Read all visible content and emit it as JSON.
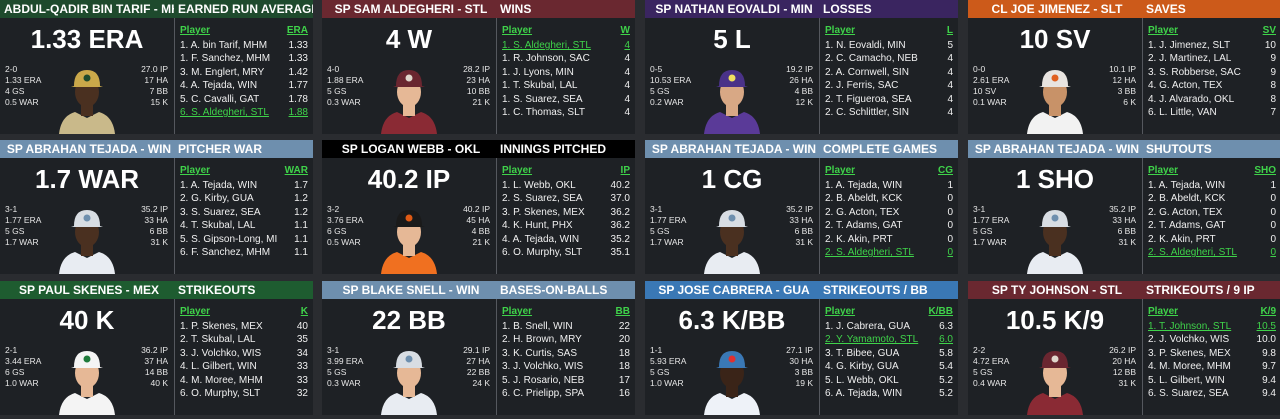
{
  "colors": {
    "highlight": "#3fd34a",
    "mhm": "#1e4a2d",
    "stl": "#6a2830",
    "min": "#3a2560",
    "slt": "#cc5a1a",
    "win": "#6e8fae",
    "okl": "#000000",
    "mex": "#1e5c30",
    "gua": "#3a78b5"
  },
  "cards": [
    {
      "theme": "mhm",
      "player_header": "ABDUL-QADIR BIN TARIF - MHM",
      "category": "EARNED RUN AVERAGE",
      "big_stat": "1.33 ERA",
      "stats_left": [
        "2-0",
        "1.33 ERA",
        "4 GS",
        "0.5 WAR"
      ],
      "stats_right": [
        "27.0 IP",
        "17 HA",
        "7 BB",
        "15 K"
      ],
      "col_player": "Player",
      "col_stat": "ERA",
      "photo_icon": "player-photo-icon",
      "rows": [
        {
          "name": "1. A. bin Tarif, MHM",
          "value": "1.33",
          "hl": false
        },
        {
          "name": "1. F. Sanchez, MHM",
          "value": "1.33",
          "hl": false
        },
        {
          "name": "3. M. Englert, MRY",
          "value": "1.42",
          "hl": false
        },
        {
          "name": "4. A. Tejada, WIN",
          "value": "1.77",
          "hl": false
        },
        {
          "name": "5. C. Cavalli, GAT",
          "value": "1.78",
          "hl": false
        },
        {
          "name": "6. S. Aldegheri, STL",
          "value": "1.88",
          "hl": true
        }
      ]
    },
    {
      "theme": "stl",
      "player_header": "SP SAM ALDEGHERI - STL",
      "category": "WINS",
      "big_stat": "4 W",
      "stats_left": [
        "4-0",
        "1.88 ERA",
        "5 GS",
        "0.3 WAR"
      ],
      "stats_right": [
        "28.2 IP",
        "23 HA",
        "10 BB",
        "21 K"
      ],
      "col_player": "Player",
      "col_stat": "W",
      "photo_icon": "player-photo-icon",
      "rows": [
        {
          "name": "1. S. Aldegheri, STL",
          "value": "4",
          "hl": true
        },
        {
          "name": "1. R. Johnson, SAC",
          "value": "4",
          "hl": false
        },
        {
          "name": "1. J. Lyons, MIN",
          "value": "4",
          "hl": false
        },
        {
          "name": "1. T. Skubal, LAL",
          "value": "4",
          "hl": false
        },
        {
          "name": "1. S. Suarez, SEA",
          "value": "4",
          "hl": false
        },
        {
          "name": "1. C. Thomas, SLT",
          "value": "4",
          "hl": false
        }
      ]
    },
    {
      "theme": "min",
      "player_header": "SP NATHAN EOVALDI - MIN",
      "category": "LOSSES",
      "big_stat": "5 L",
      "stats_left": [
        "0-5",
        "10.53 ERA",
        "5 GS",
        "0.2 WAR"
      ],
      "stats_right": [
        "19.2 IP",
        "26 HA",
        "4 BB",
        "12 K"
      ],
      "col_player": "Player",
      "col_stat": "L",
      "photo_icon": "player-photo-icon",
      "rows": [
        {
          "name": "1. N. Eovaldi, MIN",
          "value": "5",
          "hl": false
        },
        {
          "name": "2. C. Camacho, NEB",
          "value": "4",
          "hl": false
        },
        {
          "name": "2. A. Cornwell, SIN",
          "value": "4",
          "hl": false
        },
        {
          "name": "2. J. Ferris, SAC",
          "value": "4",
          "hl": false
        },
        {
          "name": "2. T. Figueroa, SEA",
          "value": "4",
          "hl": false
        },
        {
          "name": "2. C. Schlittler, SIN",
          "value": "4",
          "hl": false
        }
      ]
    },
    {
      "theme": "slt",
      "player_header": "CL JOE JIMENEZ - SLT",
      "category": "SAVES",
      "big_stat": "10 SV",
      "stats_left": [
        "0-0",
        "2.61 ERA",
        "10 SV",
        "0.1 WAR"
      ],
      "stats_right": [
        "10.1 IP",
        "12 HA",
        "3 BB",
        "6 K"
      ],
      "col_player": "Player",
      "col_stat": "SV",
      "photo_icon": "player-photo-icon",
      "rows": [
        {
          "name": "1. J. Jimenez, SLT",
          "value": "10",
          "hl": false
        },
        {
          "name": "2. J. Martinez, LAL",
          "value": "9",
          "hl": false
        },
        {
          "name": "3. S. Robberse, SAC",
          "value": "9",
          "hl": false
        },
        {
          "name": "4. G. Acton, TEX",
          "value": "8",
          "hl": false
        },
        {
          "name": "4. J. Alvarado, OKL",
          "value": "8",
          "hl": false
        },
        {
          "name": "6. L. Little, VAN",
          "value": "7",
          "hl": false
        }
      ]
    },
    {
      "theme": "win",
      "player_header": "SP ABRAHAN TEJADA - WIN",
      "category": "PITCHER WAR",
      "big_stat": "1.7 WAR",
      "stats_left": [
        "3-1",
        "1.77 ERA",
        "5 GS",
        "1.7 WAR"
      ],
      "stats_right": [
        "35.2 IP",
        "33 HA",
        "6 BB",
        "31 K"
      ],
      "col_player": "Player",
      "col_stat": "WAR",
      "photo_icon": "player-photo-icon",
      "rows": [
        {
          "name": "1. A. Tejada, WIN",
          "value": "1.7",
          "hl": false
        },
        {
          "name": "2. G. Kirby, GUA",
          "value": "1.2",
          "hl": false
        },
        {
          "name": "3. S. Suarez, SEA",
          "value": "1.2",
          "hl": false
        },
        {
          "name": "4. T. Skubal, LAL",
          "value": "1.1",
          "hl": false
        },
        {
          "name": "5. S. Gipson-Long, MIN",
          "value": "1.1",
          "hl": false
        },
        {
          "name": "6. F. Sanchez, MHM",
          "value": "1.1",
          "hl": false
        }
      ]
    },
    {
      "theme": "okl",
      "player_header": "SP LOGAN WEBB - OKL",
      "category": "INNINGS PITCHED",
      "big_stat": "40.2 IP",
      "stats_left": [
        "3-2",
        "3.76 ERA",
        "6 GS",
        "0.5 WAR"
      ],
      "stats_right": [
        "40.2 IP",
        "45 HA",
        "4 BB",
        "21 K"
      ],
      "col_player": "Player",
      "col_stat": "IP",
      "photo_icon": "player-photo-icon",
      "rows": [
        {
          "name": "1. L. Webb, OKL",
          "value": "40.2",
          "hl": false
        },
        {
          "name": "2. S. Suarez, SEA",
          "value": "37.0",
          "hl": false
        },
        {
          "name": "3. P. Skenes, MEX",
          "value": "36.2",
          "hl": false
        },
        {
          "name": "4. K. Hunt, PHX",
          "value": "36.2",
          "hl": false
        },
        {
          "name": "4. A. Tejada, WIN",
          "value": "35.2",
          "hl": false
        },
        {
          "name": "6. O. Murphy, SLT",
          "value": "35.1",
          "hl": false
        }
      ]
    },
    {
      "theme": "win",
      "player_header": "SP ABRAHAN TEJADA - WIN",
      "category": "COMPLETE GAMES",
      "big_stat": "1 CG",
      "stats_left": [
        "3-1",
        "1.77 ERA",
        "5 GS",
        "1.7 WAR"
      ],
      "stats_right": [
        "35.2 IP",
        "33 HA",
        "6 BB",
        "31 K"
      ],
      "col_player": "Player",
      "col_stat": "CG",
      "photo_icon": "player-photo-icon",
      "rows": [
        {
          "name": "1. A. Tejada, WIN",
          "value": "1",
          "hl": false
        },
        {
          "name": "2. B. Abeldt, KCK",
          "value": "0",
          "hl": false
        },
        {
          "name": "2. G. Acton, TEX",
          "value": "0",
          "hl": false
        },
        {
          "name": "2. T. Adams, GAT",
          "value": "0",
          "hl": false
        },
        {
          "name": "2. K. Akin, PRT",
          "value": "0",
          "hl": false
        },
        {
          "name": "2. S. Aldegheri, STL",
          "value": "0",
          "hl": true
        }
      ]
    },
    {
      "theme": "win",
      "player_header": "SP ABRAHAN TEJADA - WIN",
      "category": "SHUTOUTS",
      "big_stat": "1 SHO",
      "stats_left": [
        "3-1",
        "1.77 ERA",
        "5 GS",
        "1.7 WAR"
      ],
      "stats_right": [
        "35.2 IP",
        "33 HA",
        "6 BB",
        "31 K"
      ],
      "col_player": "Player",
      "col_stat": "SHO",
      "photo_icon": "player-photo-icon",
      "rows": [
        {
          "name": "1. A. Tejada, WIN",
          "value": "1",
          "hl": false
        },
        {
          "name": "2. B. Abeldt, KCK",
          "value": "0",
          "hl": false
        },
        {
          "name": "2. G. Acton, TEX",
          "value": "0",
          "hl": false
        },
        {
          "name": "2. T. Adams, GAT",
          "value": "0",
          "hl": false
        },
        {
          "name": "2. K. Akin, PRT",
          "value": "0",
          "hl": false
        },
        {
          "name": "2. S. Aldegheri, STL",
          "value": "0",
          "hl": true
        }
      ]
    },
    {
      "theme": "mex",
      "player_header": "SP PAUL SKENES - MEX",
      "category": "STRIKEOUTS",
      "big_stat": "40 K",
      "stats_left": [
        "2-1",
        "3.44 ERA",
        "6 GS",
        "1.0 WAR"
      ],
      "stats_right": [
        "36.2 IP",
        "37 HA",
        "14 BB",
        "40 K"
      ],
      "col_player": "Player",
      "col_stat": "K",
      "photo_icon": "player-photo-icon",
      "rows": [
        {
          "name": "1. P. Skenes, MEX",
          "value": "40",
          "hl": false
        },
        {
          "name": "2. T. Skubal, LAL",
          "value": "35",
          "hl": false
        },
        {
          "name": "3. J. Volchko, WIS",
          "value": "34",
          "hl": false
        },
        {
          "name": "4. L. Gilbert, WIN",
          "value": "33",
          "hl": false
        },
        {
          "name": "4. M. Moree, MHM",
          "value": "33",
          "hl": false
        },
        {
          "name": "6. O. Murphy, SLT",
          "value": "32",
          "hl": false
        }
      ]
    },
    {
      "theme": "win",
      "player_header": "SP BLAKE SNELL - WIN",
      "category": "BASES-ON-BALLS",
      "big_stat": "22 BB",
      "stats_left": [
        "3-1",
        "3.99 ERA",
        "5 GS",
        "0.3 WAR"
      ],
      "stats_right": [
        "29.1 IP",
        "27 HA",
        "22 BB",
        "24 K"
      ],
      "col_player": "Player",
      "col_stat": "BB",
      "photo_icon": "player-photo-icon",
      "rows": [
        {
          "name": "1. B. Snell, WIN",
          "value": "22",
          "hl": false
        },
        {
          "name": "2. H. Brown, MRY",
          "value": "20",
          "hl": false
        },
        {
          "name": "3. K. Curtis, SAS",
          "value": "18",
          "hl": false
        },
        {
          "name": "3. J. Volchko, WIS",
          "value": "18",
          "hl": false
        },
        {
          "name": "5. J. Rosario, NEB",
          "value": "17",
          "hl": false
        },
        {
          "name": "6. C. Prielipp, SPA",
          "value": "16",
          "hl": false
        }
      ]
    },
    {
      "theme": "gua",
      "player_header": "SP JOSE CABRERA - GUA",
      "category": "STRIKEOUTS / BB",
      "big_stat": "6.3 K/BB",
      "stats_left": [
        "1-1",
        "5.93 ERA",
        "5 GS",
        "1.0 WAR"
      ],
      "stats_right": [
        "27.1 IP",
        "30 HA",
        "3 BB",
        "19 K"
      ],
      "col_player": "Player",
      "col_stat": "K/BB",
      "photo_icon": "player-photo-icon",
      "rows": [
        {
          "name": "1. J. Cabrera, GUA",
          "value": "6.3",
          "hl": false
        },
        {
          "name": "2. Y. Yamamoto, STL",
          "value": "6.0",
          "hl": true
        },
        {
          "name": "3. T. Bibee, GUA",
          "value": "5.8",
          "hl": false
        },
        {
          "name": "4. G. Kirby, GUA",
          "value": "5.4",
          "hl": false
        },
        {
          "name": "5. L. Webb, OKL",
          "value": "5.2",
          "hl": false
        },
        {
          "name": "6. A. Tejada, WIN",
          "value": "5.2",
          "hl": false
        }
      ]
    },
    {
      "theme": "stl",
      "player_header": "SP TY JOHNSON - STL",
      "category": "STRIKEOUTS / 9 IP",
      "big_stat": "10.5 K/9",
      "stats_left": [
        "2-2",
        "4.72 ERA",
        "5 GS",
        "0.4 WAR"
      ],
      "stats_right": [
        "26.2 IP",
        "20 HA",
        "12 BB",
        "31 K"
      ],
      "col_player": "Player",
      "col_stat": "K/9",
      "photo_icon": "player-photo-icon",
      "rows": [
        {
          "name": "1. T. Johnson, STL",
          "value": "10.5",
          "hl": true
        },
        {
          "name": "2. J. Volchko, WIS",
          "value": "10.0",
          "hl": false
        },
        {
          "name": "3. P. Skenes, MEX",
          "value": "9.8",
          "hl": false
        },
        {
          "name": "4. M. Moree, MHM",
          "value": "9.7",
          "hl": false
        },
        {
          "name": "5. L. Gilbert, WIN",
          "value": "9.4",
          "hl": false
        },
        {
          "name": "6. S. Suarez, SEA",
          "value": "9.4",
          "hl": false
        }
      ]
    }
  ]
}
